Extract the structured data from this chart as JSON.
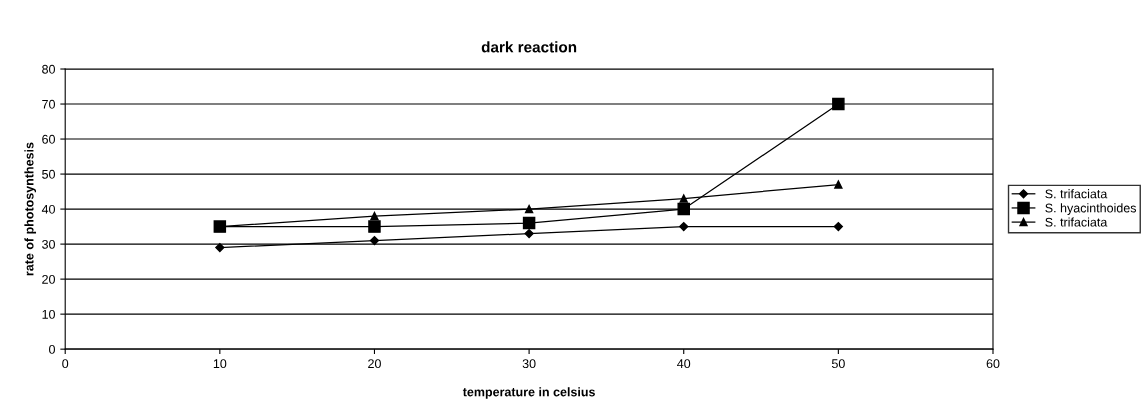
{
  "chart_data": {
    "type": "line",
    "title": "dark reaction",
    "xlabel": "temperature in celsius",
    "ylabel": "rate of photosynthesis",
    "x": [
      10,
      20,
      30,
      40,
      50
    ],
    "series": [
      {
        "name": "S. trifaciata",
        "color": "#000000",
        "marker": "diamond",
        "values": [
          29,
          31,
          33,
          35,
          35
        ]
      },
      {
        "name": "S. hyacinthoides",
        "color": "#000000",
        "marker": "square",
        "values": [
          35,
          35,
          36,
          40,
          70
        ]
      },
      {
        "name": "S. trifaciata",
        "color": "#000000",
        "marker": "triangle",
        "values": [
          35,
          38,
          40,
          43,
          47
        ]
      }
    ],
    "xlim": [
      0,
      60
    ],
    "xticks": [
      0,
      10,
      20,
      30,
      40,
      50,
      60
    ],
    "ylim": [
      0,
      80
    ],
    "yticks": [
      0,
      10,
      20,
      30,
      40,
      50,
      60,
      70,
      80
    ],
    "grid": "y",
    "legend": "right",
    "line_style": "solid"
  }
}
